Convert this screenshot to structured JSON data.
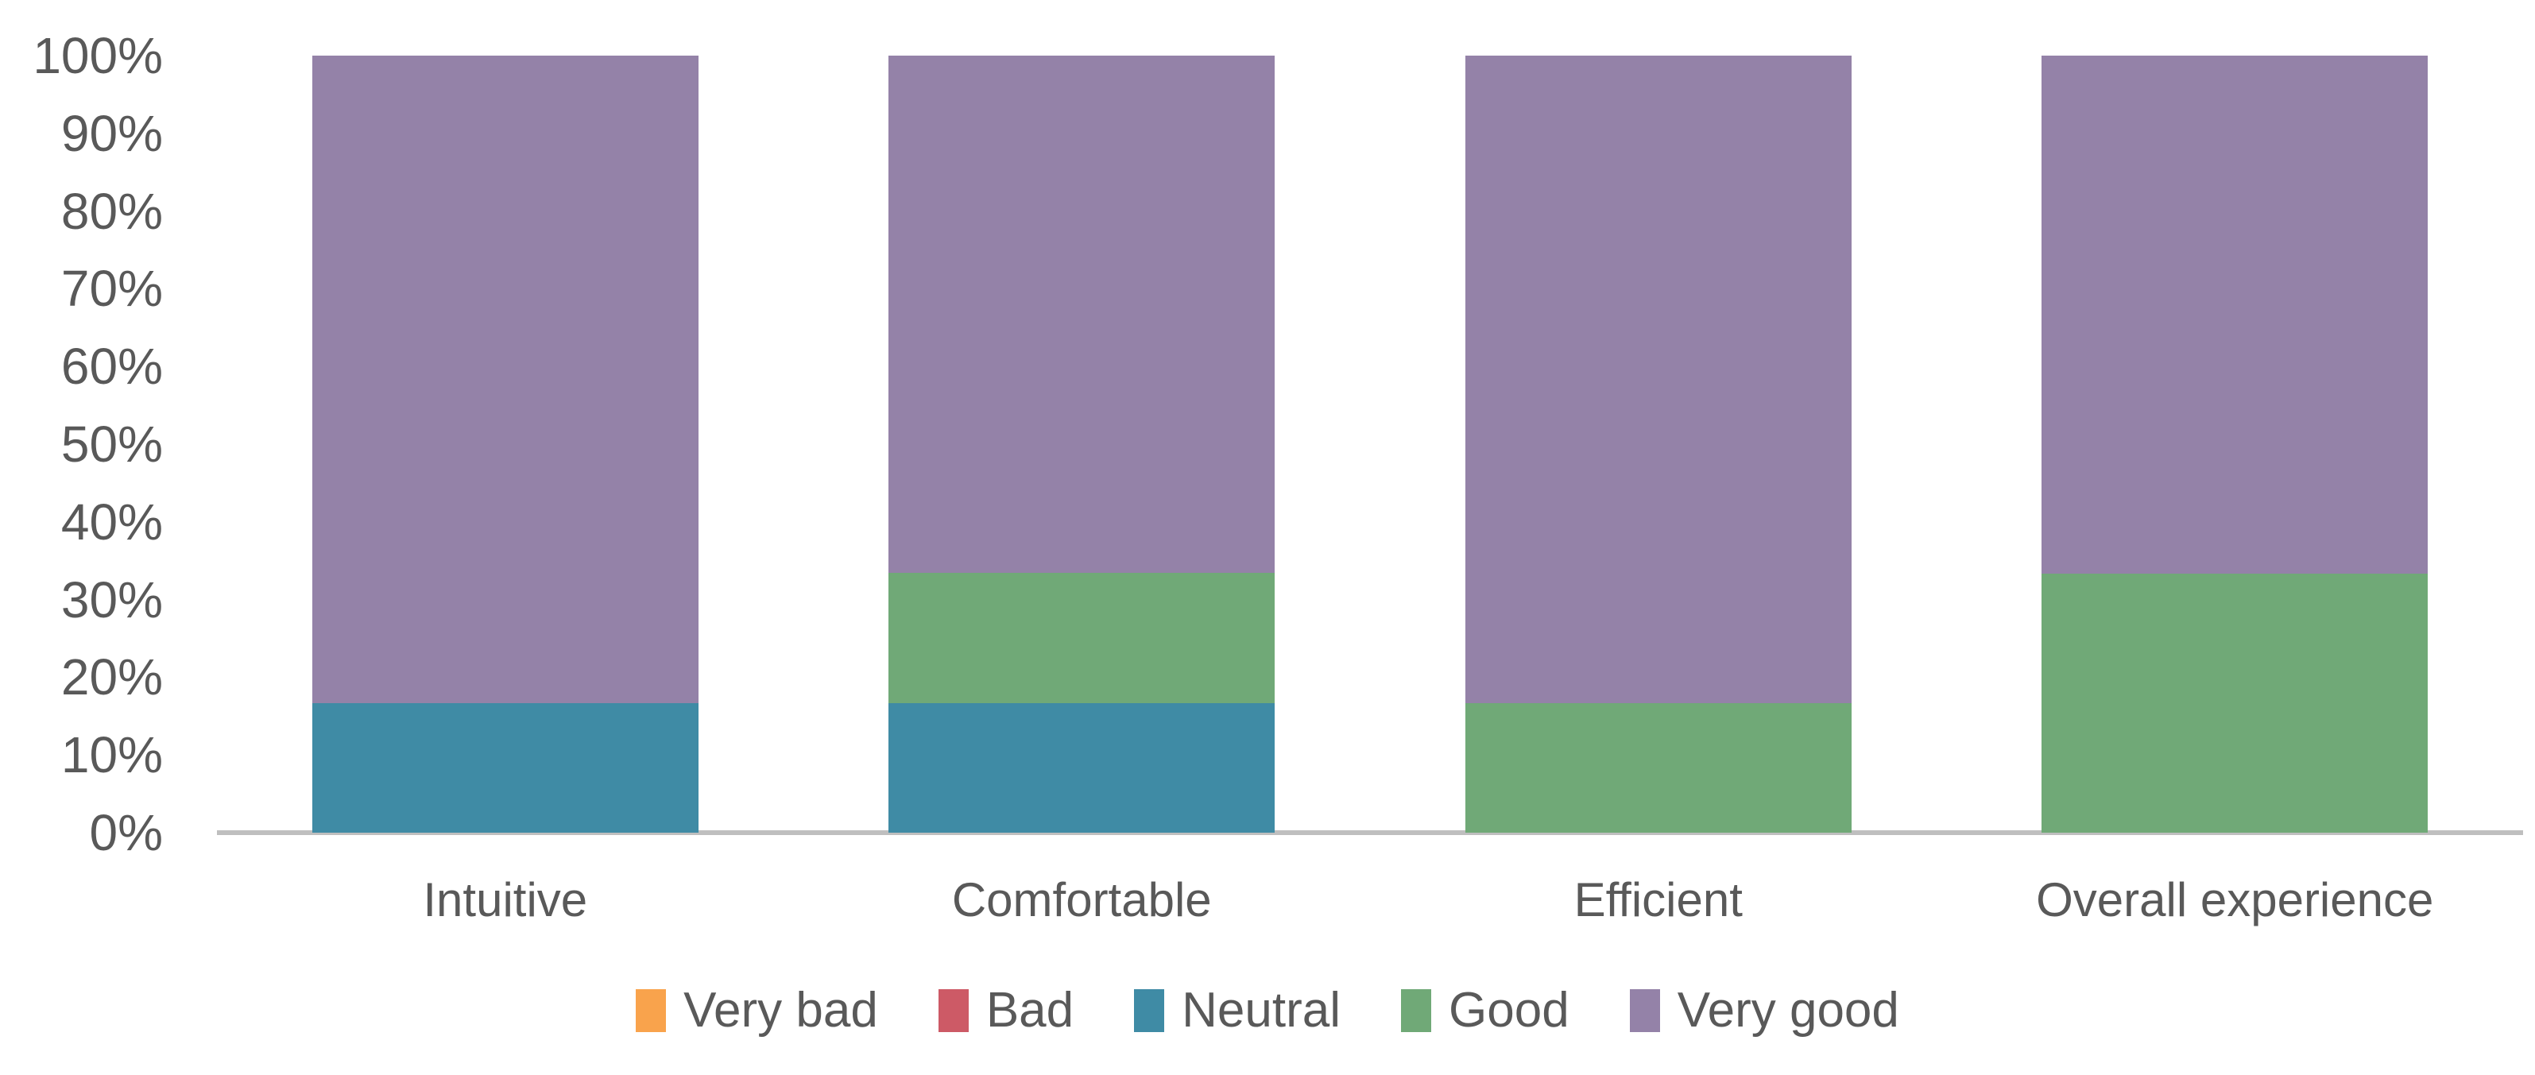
{
  "chart_data": {
    "type": "bar",
    "variant": "stacked-100-percent",
    "title": "",
    "xlabel": "",
    "ylabel": "",
    "categories": [
      "Intuitive",
      "Comfortable",
      "Efficient",
      "Overall experience"
    ],
    "series": [
      {
        "name": "Very bad",
        "color": "#F9A34C",
        "values": [
          0,
          0,
          0,
          0
        ]
      },
      {
        "name": "Bad",
        "color": "#CD5A66",
        "values": [
          0,
          0,
          0,
          0
        ]
      },
      {
        "name": "Neutral",
        "color": "#3F8BA5",
        "values": [
          16.7,
          16.7,
          0,
          0
        ]
      },
      {
        "name": "Good",
        "color": "#70A977",
        "values": [
          0,
          16.7,
          16.7,
          33.3
        ]
      },
      {
        "name": "Very good",
        "color": "#9482A8",
        "values": [
          83.3,
          66.6,
          83.3,
          66.7
        ]
      }
    ],
    "ylim": [
      0,
      100
    ],
    "yticks": [
      "0%",
      "10%",
      "20%",
      "30%",
      "40%",
      "50%",
      "60%",
      "70%",
      "80%",
      "90%",
      "100%"
    ],
    "grid": false,
    "legend_position": "bottom",
    "legend": [
      "Very bad",
      "Bad",
      "Neutral",
      "Good",
      "Very good"
    ]
  },
  "style": {
    "text_color": "#595959",
    "axis_line_color": "#BFBFBF",
    "background": "#FFFFFF"
  }
}
